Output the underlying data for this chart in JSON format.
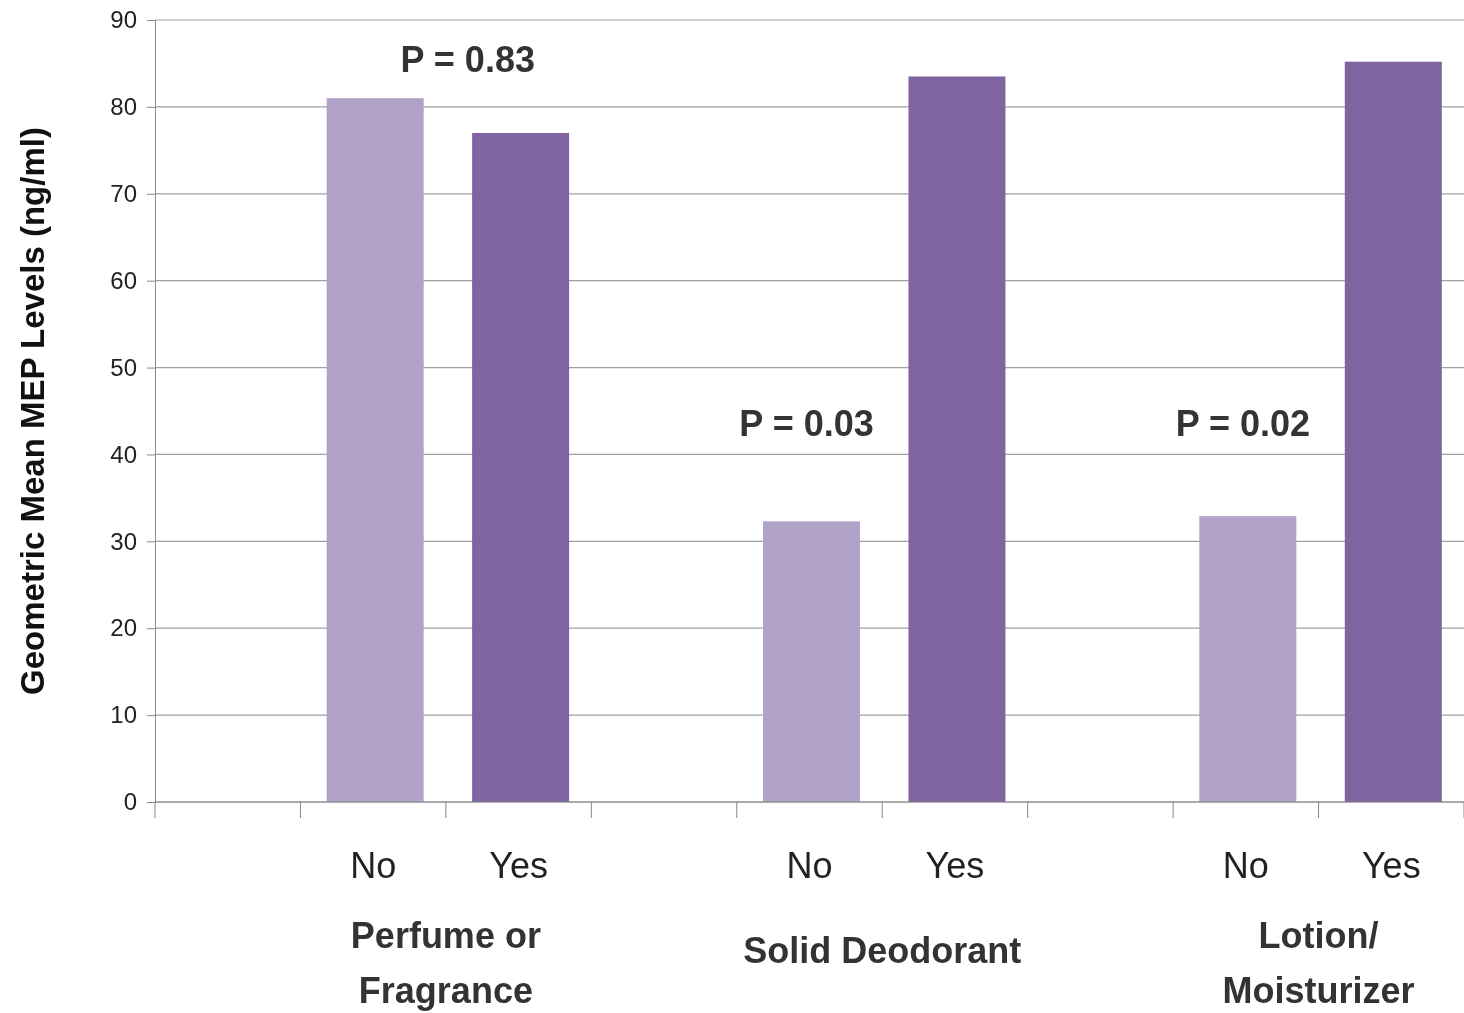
{
  "chart_data": {
    "type": "bar",
    "ylabel": "Geometric Mean MEP Levels (ng/ml)",
    "categories": [
      null,
      "No",
      "Yes",
      null,
      "No",
      "Yes",
      null,
      "No",
      "Yes"
    ],
    "values": [
      null,
      81,
      77,
      null,
      32.3,
      83.5,
      null,
      32.9,
      85.2
    ],
    "colors": [
      null,
      "#b1a2c8",
      "#8064a2",
      null,
      "#b1a2c8",
      "#8064a2",
      null,
      "#b1a2c8",
      "#8064a2"
    ],
    "ylim": [
      0,
      90
    ],
    "yticks": [
      0,
      10,
      20,
      30,
      40,
      50,
      60,
      70,
      80,
      90
    ],
    "grid": "y",
    "annotations": [
      "P = 0.83",
      "P = 0.03",
      "P = 0.02",
      "Perfume or Fragrance",
      "Solid Deodorant",
      "Lotion/ Moisturizer"
    ]
  }
}
